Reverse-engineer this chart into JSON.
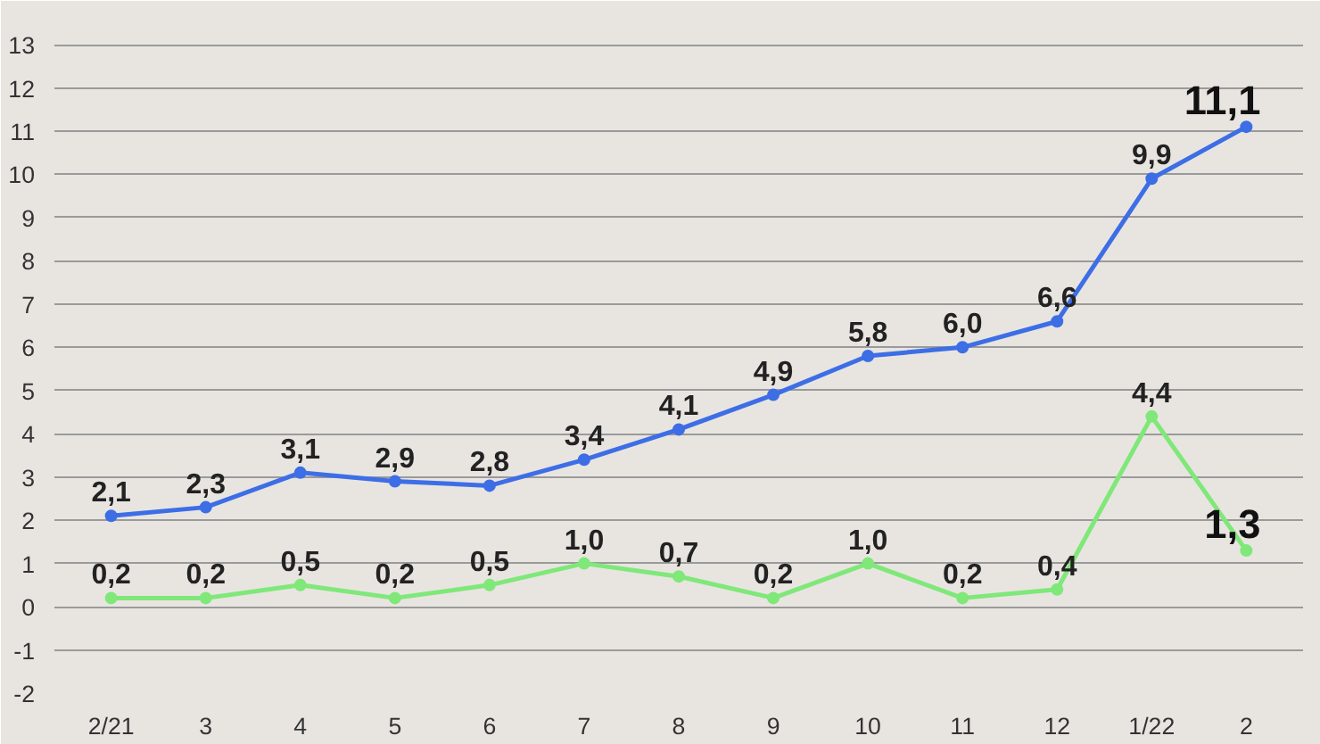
{
  "chart_data": {
    "type": "line",
    "categories": [
      "2/21",
      "3",
      "4",
      "5",
      "6",
      "7",
      "8",
      "9",
      "10",
      "11",
      "12",
      "1/22",
      "2"
    ],
    "series": [
      {
        "color": "#3d6ee6",
        "values": [
          2.1,
          2.3,
          3.1,
          2.9,
          2.8,
          3.4,
          4.1,
          4.9,
          5.8,
          6.0,
          6.6,
          9.9,
          11.1
        ],
        "value_labels": [
          "2,1",
          "2,3",
          "3,1",
          "2,9",
          "2,8",
          "3,4",
          "4,1",
          "4,9",
          "5,8",
          "6,0",
          "6,6",
          "9,9",
          "11,1"
        ]
      },
      {
        "color": "#7fe879",
        "values": [
          0.2,
          0.2,
          0.5,
          0.2,
          0.5,
          1.0,
          0.7,
          0.2,
          1.0,
          0.2,
          0.4,
          4.4,
          1.3
        ],
        "value_labels": [
          "0,2",
          "0,2",
          "0,5",
          "0,2",
          "0,5",
          "1,0",
          "0,7",
          "0,2",
          "1,0",
          "0,2",
          "0,4",
          "4,4",
          "1,3"
        ]
      }
    ],
    "ylim": [
      -2,
      13.6
    ],
    "yticks": [
      -2,
      -1,
      0,
      1,
      2,
      3,
      4,
      5,
      6,
      7,
      8,
      9,
      10,
      11,
      12,
      13
    ],
    "grid": "y",
    "marker": "circle",
    "line_style": "solid"
  }
}
